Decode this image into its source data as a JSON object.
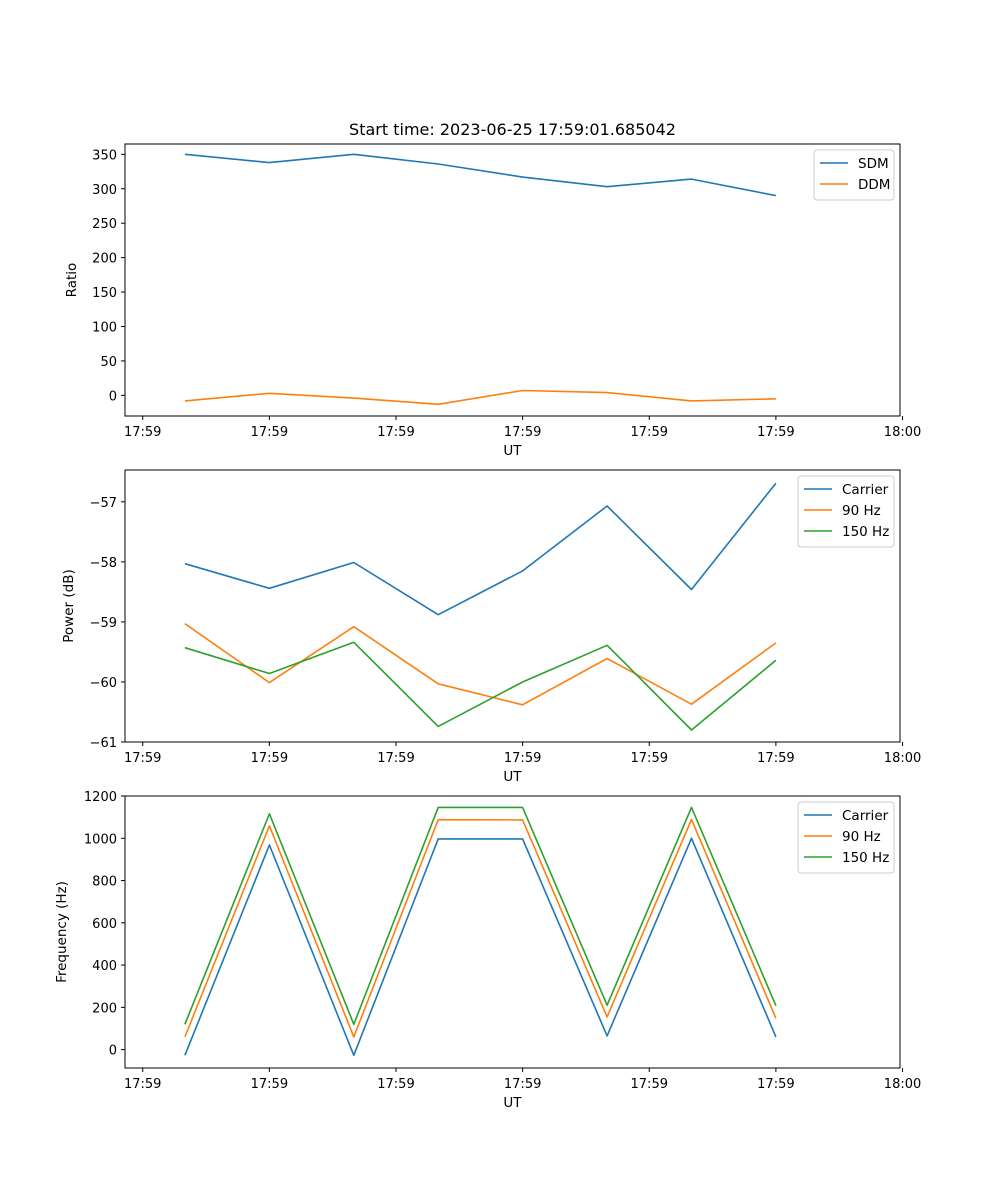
{
  "chart_data": [
    {
      "type": "line",
      "title": "Start time: 2023-06-25 17:59:01.685042",
      "xlabel": "UT",
      "ylabel": "Ratio",
      "x": [
        1,
        2,
        3,
        4,
        5,
        6,
        7,
        8
      ],
      "xlim": [
        0.29,
        9.47
      ],
      "x_ticks": [
        0.5,
        2,
        3.5,
        5,
        6.5,
        8,
        9.5
      ],
      "x_tick_labels": [
        "17:59",
        "17:59",
        "17:59",
        "17:59",
        "17:59",
        "17:59",
        "18:00"
      ],
      "ylim": [
        -30,
        365
      ],
      "y_ticks": [
        0,
        50,
        100,
        150,
        200,
        250,
        300,
        350
      ],
      "y_tick_labels": [
        "0",
        "50",
        "100",
        "150",
        "200",
        "250",
        "300",
        "350"
      ],
      "legend_position": "top-right",
      "grid": false,
      "series": [
        {
          "name": "SDM",
          "color": "#1f77b4",
          "values": [
            350,
            338,
            350,
            336,
            317,
            303,
            314,
            290
          ]
        },
        {
          "name": "DDM",
          "color": "#ff7f0e",
          "values": [
            -8,
            3,
            -4,
            -13,
            7,
            4,
            -8,
            -5
          ]
        }
      ]
    },
    {
      "type": "line",
      "title": "",
      "xlabel": "UT",
      "ylabel": "Power (dB)",
      "x": [
        1,
        2,
        3,
        4,
        5,
        6,
        7,
        8
      ],
      "xlim": [
        0.29,
        9.47
      ],
      "x_ticks": [
        0.5,
        2,
        3.5,
        5,
        6.5,
        8,
        9.5
      ],
      "x_tick_labels": [
        "17:59",
        "17:59",
        "17:59",
        "17:59",
        "17:59",
        "17:59",
        "18:00"
      ],
      "ylim": [
        -61,
        -56.47
      ],
      "y_ticks": [
        -61,
        -60,
        -59,
        -58,
        -57
      ],
      "y_tick_labels": [
        "−61",
        "−60",
        "−59",
        "−58",
        "−57"
      ],
      "legend_position": "top-right",
      "grid": false,
      "series": [
        {
          "name": "Carrier",
          "color": "#1f77b4",
          "values": [
            -58.03,
            -58.44,
            -58.01,
            -58.88,
            -58.15,
            -57.07,
            -58.46,
            -56.69
          ]
        },
        {
          "name": "90 Hz",
          "color": "#ff7f0e",
          "values": [
            -59.03,
            -60.01,
            -59.08,
            -60.03,
            -60.38,
            -59.61,
            -60.37,
            -59.35
          ]
        },
        {
          "name": "150 Hz",
          "color": "#2ca02c",
          "values": [
            -59.43,
            -59.86,
            -59.34,
            -60.74,
            -60.0,
            -59.39,
            -60.8,
            -59.64
          ]
        }
      ]
    },
    {
      "type": "line",
      "title": "",
      "xlabel": "UT",
      "ylabel": "Frequency (Hz)",
      "x": [
        1,
        2,
        3,
        4,
        5,
        6,
        7,
        8
      ],
      "xlim": [
        0.29,
        9.47
      ],
      "x_ticks": [
        0.5,
        2,
        3.5,
        5,
        6.5,
        8,
        9.5
      ],
      "x_tick_labels": [
        "17:59",
        "17:59",
        "17:59",
        "17:59",
        "17:59",
        "17:59",
        "18:00"
      ],
      "ylim": [
        -87,
        1200
      ],
      "y_ticks": [
        0,
        200,
        400,
        600,
        800,
        1000,
        1200
      ],
      "y_tick_labels": [
        "0",
        "200",
        "400",
        "600",
        "800",
        "1000",
        "1200"
      ],
      "legend_position": "top-right",
      "grid": false,
      "series": [
        {
          "name": "Carrier",
          "color": "#1f77b4",
          "values": [
            -27,
            968,
            -27,
            997,
            997,
            65,
            1000,
            60
          ]
        },
        {
          "name": "90 Hz",
          "color": "#ff7f0e",
          "values": [
            60,
            1059,
            60,
            1088,
            1087,
            155,
            1089,
            148
          ]
        },
        {
          "name": "150 Hz",
          "color": "#2ca02c",
          "values": [
            120,
            1116,
            120,
            1146,
            1146,
            210,
            1146,
            208
          ]
        }
      ]
    }
  ]
}
